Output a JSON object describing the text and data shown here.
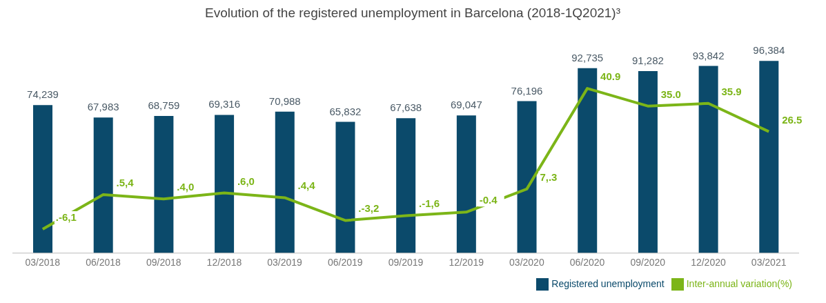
{
  "chart_data": {
    "type": "bar",
    "title": "Evolution of the registered unemployment in Barcelona (2018-1Q2021)³",
    "categories": [
      "03/2018",
      "06/2018",
      "09/2018",
      "12/2018",
      "03/2019",
      "06/2019",
      "09/2019",
      "12/2019",
      "03/2020",
      "06/2020",
      "09/2020",
      "12/2020",
      "03/2021"
    ],
    "series": [
      {
        "name": "Registered unemployment",
        "color": "#0b4a6b",
        "values": [
          74239,
          67983,
          68759,
          69316,
          70988,
          65832,
          67638,
          69047,
          76196,
          92735,
          91282,
          93842,
          96384
        ],
        "value_labels": [
          "74,239",
          "67,983",
          "68,759",
          "69,316",
          "70,988",
          "65,832",
          "67,638",
          "69,047",
          "76,196",
          "92,735",
          "91,282",
          "93,842",
          "96,384"
        ]
      },
      {
        "name": "Inter-annual variation(%)",
        "type": "line",
        "axis": "y2",
        "color": "#7cb518",
        "values": [
          -6.1,
          5.4,
          4.0,
          6.0,
          4.4,
          -3.2,
          -1.6,
          -0.4,
          7.3,
          40.9,
          35.0,
          35.9,
          26.5
        ],
        "value_labels": [
          ".-6,1",
          ".5,4",
          ".4,0",
          ".6,0",
          ".4,4",
          ".-3,2",
          ".-1,6",
          "-0.4",
          "7,.3",
          "40.9",
          "35.0",
          "35.9",
          "26.5"
        ]
      }
    ],
    "legend": "bottom right",
    "tick_labels": "x"
  }
}
